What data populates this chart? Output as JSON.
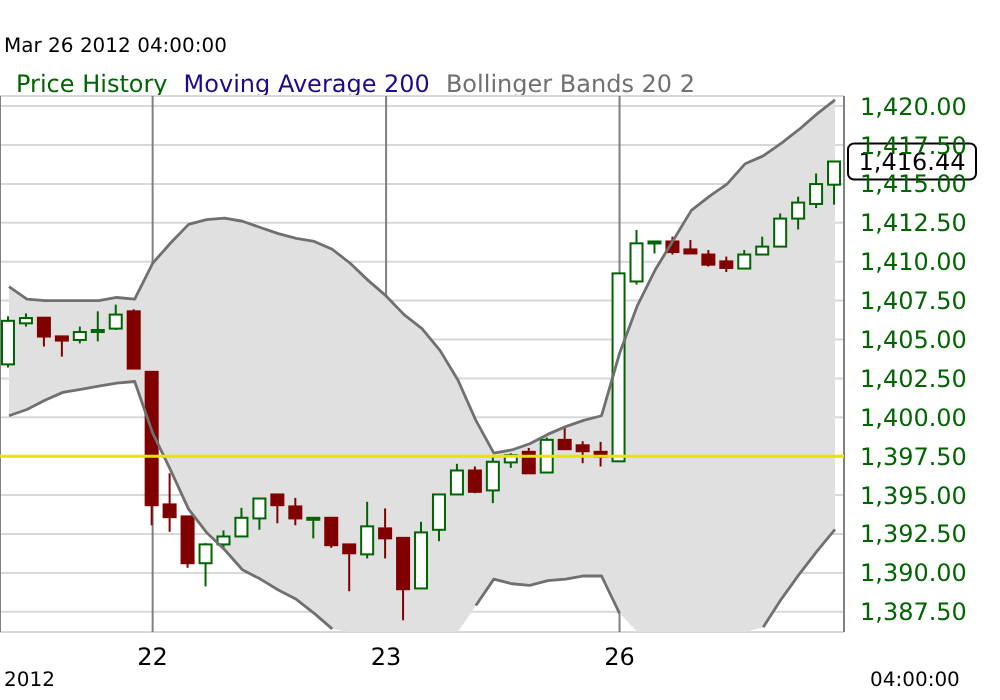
{
  "chart_data": {
    "type": "candlestick",
    "subtitle": "Mar 26 2012 04:00:00",
    "categories": [
      null,
      null,
      null,
      null,
      null,
      null,
      null,
      null,
      "22",
      null,
      null,
      null,
      null,
      null,
      null,
      null,
      null,
      null,
      null,
      null,
      null,
      "23",
      null,
      null,
      null,
      null,
      null,
      null,
      null,
      null,
      null,
      null,
      null,
      null,
      "26",
      null,
      null,
      null,
      null,
      null,
      null,
      null,
      null,
      null,
      null,
      null,
      null
    ],
    "series": [
      {
        "name": "Price History",
        "color": "#006400",
        "ohlc": [
          [
            1403.4,
            1406.5,
            1403.2,
            1406.2
          ],
          [
            1406.04,
            1406.68,
            1405.83,
            1406.38
          ],
          [
            1406.4,
            1406.4,
            1404.55,
            1405.19
          ],
          [
            1405.2,
            1405.2,
            1403.9,
            1404.93
          ],
          [
            1404.97,
            1405.83,
            1404.75,
            1405.48
          ],
          [
            1405.48,
            1406.81,
            1404.88,
            1405.61
          ],
          [
            1405.7,
            1407.24,
            1405.61,
            1406.6
          ],
          [
            1406.81,
            1406.94,
            1403.13,
            1403.13
          ],
          [
            1402.92,
            1402.92,
            1393.06,
            1394.35
          ],
          [
            1394.4,
            1396.4,
            1392.64,
            1393.58
          ],
          [
            1393.63,
            1393.63,
            1390.33,
            1390.62
          ],
          [
            1390.62,
            1391.91,
            1389.13,
            1391.83
          ],
          [
            1391.83,
            1392.73,
            1391.48,
            1392.34
          ],
          [
            1392.34,
            1394.18,
            1392.34,
            1393.54
          ],
          [
            1393.5,
            1394.78,
            1392.77,
            1394.78
          ],
          [
            1395.04,
            1395.04,
            1393.19,
            1394.35
          ],
          [
            1394.27,
            1394.82,
            1393.06,
            1393.5
          ],
          [
            1393.54,
            1393.54,
            1392.22,
            1393.54
          ],
          [
            1393.54,
            1393.54,
            1391.61,
            1391.78
          ],
          [
            1391.83,
            1391.83,
            1388.82,
            1391.26
          ],
          [
            1391.19,
            1394.57,
            1390.93,
            1392.99
          ],
          [
            1392.86,
            1394.14,
            1390.93,
            1392.22
          ],
          [
            1392.25,
            1392.25,
            1386.95,
            1388.95
          ],
          [
            1389.0,
            1393.28,
            1389.0,
            1392.6
          ],
          [
            1392.77,
            1395.04,
            1392.04,
            1395.04
          ],
          [
            1395.04,
            1397.01,
            1395.04,
            1396.58
          ],
          [
            1396.58,
            1396.84,
            1395.12,
            1395.21
          ],
          [
            1395.3,
            1397.48,
            1394.48,
            1397.14
          ],
          [
            1397.1,
            1397.69,
            1396.75,
            1397.56
          ],
          [
            1397.78,
            1398.03,
            1396.4,
            1396.4
          ],
          [
            1396.45,
            1398.7,
            1396.45,
            1398.55
          ],
          [
            1398.55,
            1399.41,
            1397.95,
            1397.95
          ],
          [
            1398.2,
            1398.46,
            1397.05,
            1397.82
          ],
          [
            1397.78,
            1398.42,
            1396.84,
            1397.48
          ],
          [
            1397.17,
            1409.25,
            1397.17,
            1409.25
          ],
          [
            1408.73,
            1412.04,
            1408.53,
            1411.18
          ],
          [
            1411.25,
            1411.3,
            1410.53,
            1411.3
          ],
          [
            1411.3,
            1411.61,
            1410.46,
            1410.62
          ],
          [
            1410.79,
            1411.39,
            1410.53,
            1410.53
          ],
          [
            1410.46,
            1410.75,
            1409.69,
            1409.81
          ],
          [
            1410.02,
            1410.33,
            1409.34,
            1409.6
          ],
          [
            1409.56,
            1410.75,
            1409.56,
            1410.46
          ],
          [
            1410.46,
            1411.61,
            1410.46,
            1410.97
          ],
          [
            1410.97,
            1413.1,
            1410.97,
            1412.77
          ],
          [
            1412.77,
            1414.18,
            1412.07,
            1413.8
          ],
          [
            1413.71,
            1415.67,
            1413.45,
            1414.99
          ],
          [
            1414.95,
            1416.44,
            1413.67,
            1416.44
          ]
        ],
        "colors": [
          "#006400",
          "#006400",
          "#800000",
          "#800000",
          "#006400",
          "#006400",
          "#006400",
          "#800000",
          "#800000",
          "#800000",
          "#800000",
          "#006400",
          "#006400",
          "#006400",
          "#006400",
          "#800000",
          "#800000",
          "#006400",
          "#800000",
          "#800000",
          "#006400",
          "#800000",
          "#800000",
          "#006400",
          "#006400",
          "#006400",
          "#800000",
          "#006400",
          "#006400",
          "#800000",
          "#006400",
          "#800000",
          "#800000",
          "#800000",
          "#006400",
          "#006400",
          "#006400",
          "#800000",
          "#800000",
          "#800000",
          "#800000",
          "#006400",
          "#006400",
          "#006400",
          "#006400",
          "#006400",
          "#006400"
        ]
      },
      {
        "name": "Moving Average 200",
        "type": "line",
        "color": "#1a0a8c",
        "values": [
          null,
          null,
          null,
          null,
          null,
          null,
          null,
          null,
          null,
          null,
          null,
          null,
          null,
          null,
          null,
          null,
          null,
          null,
          null,
          null,
          null,
          null,
          null,
          null,
          null,
          null,
          null,
          null,
          null,
          null,
          null,
          null,
          null,
          null,
          null,
          null,
          null,
          null,
          null,
          null,
          null,
          null,
          null,
          null,
          null,
          null,
          null
        ]
      },
      {
        "name": "Bollinger Bands 20 2",
        "type": "area",
        "color": "#707070",
        "values": [
          1408.4,
          1407.6,
          1407.5,
          1407.5,
          1407.5,
          1407.5,
          1407.7,
          1407.6,
          1409.9,
          1411.2,
          1412.4,
          1412.7,
          1412.8,
          1412.6,
          1412.2,
          1411.8,
          1411.5,
          1411.3,
          1410.8,
          1409.9,
          1408.8,
          1407.8,
          1406.6,
          1405.7,
          1404.3,
          1402.4,
          1399.8,
          1397.7,
          1397.9,
          1398.3,
          1398.9,
          1399.4,
          1399.8,
          1400.1,
          1404.1,
          1407.2,
          1409.5,
          1411.4,
          1413.3,
          1414.2,
          1415.0,
          1416.3,
          1416.8,
          1417.6,
          1418.5,
          1419.5,
          1420.4
        ]
      },
      {
        "type": "line",
        "color": "#707070",
        "values": [
          1400.1,
          1400.5,
          1401.1,
          1401.6,
          1401.8,
          1402.0,
          1402.2,
          1402.3,
          1399.0,
          1396.6,
          1394.1,
          1392.6,
          1391.5,
          1390.2,
          1389.6,
          1388.9,
          1388.3,
          1387.4,
          1386.4,
          null,
          null,
          null,
          null,
          null,
          null,
          null,
          1387.9,
          1389.6,
          1389.3,
          1389.2,
          1389.5,
          1389.6,
          1389.8,
          1389.8,
          1387.4,
          null,
          null,
          null,
          null,
          null,
          null,
          null,
          1386.5,
          1388.3,
          1389.9,
          1391.4,
          1392.8
        ]
      }
    ],
    "ref_lines": [
      {
        "axis": "y",
        "value": 1397.5,
        "color": "#e6e600"
      }
    ],
    "annotations": [
      "2012",
      "04:00:00",
      "1,416.44"
    ],
    "ylim": [
      1386.2,
      1420.65
    ],
    "yticks": [
      {
        "value": 1387.5,
        "label": "1,387.50"
      },
      {
        "value": 1390,
        "label": "1,390.00"
      },
      {
        "value": 1392.5,
        "label": "1,392.50"
      },
      {
        "value": 1395,
        "label": "1,395.00"
      },
      {
        "value": 1397.5,
        "label": "1,397.50"
      },
      {
        "value": 1400,
        "label": "1,400.00"
      },
      {
        "value": 1402.5,
        "label": "1,402.50"
      },
      {
        "value": 1405,
        "label": "1,405.00"
      },
      {
        "value": 1407.5,
        "label": "1,407.50"
      },
      {
        "value": 1410,
        "label": "1,410.00"
      },
      {
        "value": 1412.5,
        "label": "1,412.50"
      },
      {
        "value": 1415,
        "label": "1,415.00"
      },
      {
        "value": 1417.5,
        "label": "1,417.50"
      },
      {
        "value": 1420,
        "label": "1,420.00"
      }
    ],
    "grid": true,
    "legend": "top left"
  }
}
